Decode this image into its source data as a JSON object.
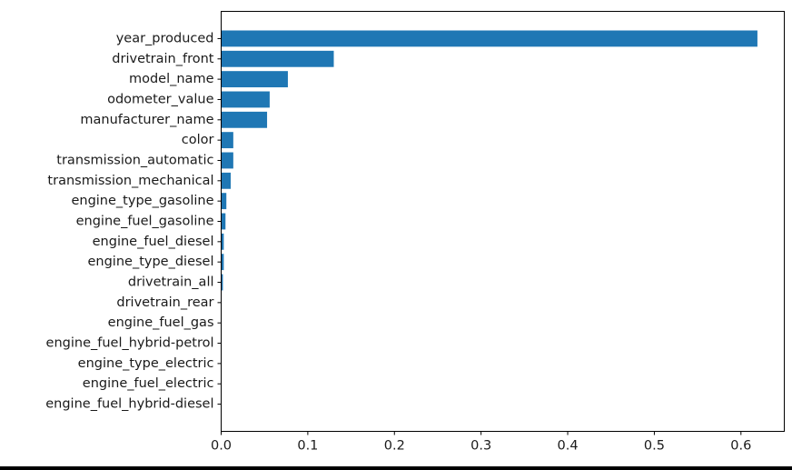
{
  "chart_data": {
    "type": "bar",
    "orientation": "horizontal",
    "title": "",
    "xlabel": "",
    "ylabel": "",
    "categories": [
      "year_produced",
      "drivetrain_front",
      "model_name",
      "odometer_value",
      "manufacturer_name",
      "color",
      "transmission_automatic",
      "transmission_mechanical",
      "engine_type_gasoline",
      "engine_fuel_gasoline",
      "engine_fuel_diesel",
      "engine_type_diesel",
      "drivetrain_all",
      "drivetrain_rear",
      "engine_fuel_gas",
      "engine_fuel_hybrid-petrol",
      "engine_type_electric",
      "engine_fuel_electric",
      "engine_fuel_hybrid-diesel"
    ],
    "values": [
      0.619,
      0.13,
      0.077,
      0.056,
      0.053,
      0.014,
      0.014,
      0.011,
      0.006,
      0.005,
      0.003,
      0.003,
      0.002,
      0.0005,
      0.0003,
      0.0002,
      0.0001,
      0.0001,
      0.0001
    ],
    "xlim": [
      0.0,
      0.65
    ],
    "xticks": [
      0.0,
      0.1,
      0.2,
      0.3,
      0.4,
      0.5,
      0.6
    ],
    "xtick_labels": [
      "0.0",
      "0.1",
      "0.2",
      "0.3",
      "0.4",
      "0.5",
      "0.6"
    ],
    "bar_color": "#1f77b4",
    "grid": false,
    "legend": "none"
  }
}
